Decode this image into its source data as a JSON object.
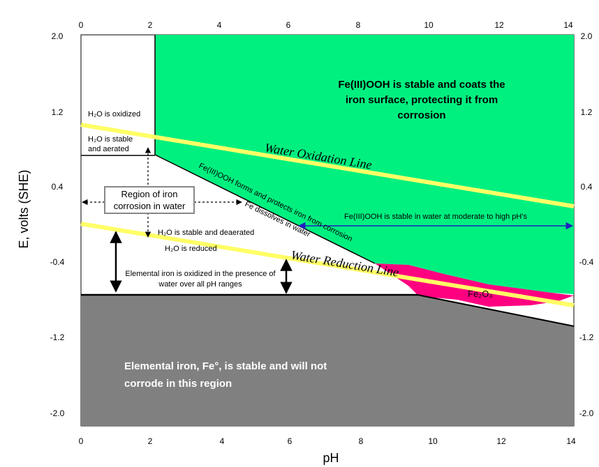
{
  "axes": {
    "x_title": "pH",
    "y_title": "E, volts (SHE)",
    "x_ticks": [
      "0",
      "2",
      "4",
      "6",
      "8",
      "10",
      "12",
      "14"
    ],
    "y_ticks": [
      "2.0",
      "1.2",
      "0.4",
      "-0.4",
      "-1.2",
      "-2.0"
    ]
  },
  "labels": {
    "feooh_stable_1": "Fe(III)OOH is stable and coats the",
    "feooh_stable_2": "iron surface, protecting it from",
    "feooh_stable_3": "corrosion",
    "water_oxidation_line": "Water Oxidation Line",
    "water_reduction_line": "Water Reduction Line",
    "h2o_oxidized": "H₂O is oxidized",
    "h2o_stable_aerated_1": "H₂O is stable",
    "h2o_stable_aerated_2": "and aerated",
    "region_box_1": "Region of iron",
    "region_box_2": "corrosion in water",
    "h2o_stable_deaerated": "H₂O is stable and deaerated",
    "h2o_reduced": "H₂O is reduced",
    "feooh_forms": "Fe(III)OOH forms and protects iron from corrosion",
    "fe_dissolves": "Fe dissolves in water",
    "feooh_moderate": "Fe(III)OOH is stable in water at moderate to high pH's",
    "elemental_oxidized_1": "Elemental iron is oxidized in the presence of",
    "elemental_oxidized_2": "water over all pH ranges",
    "fe2o3": "Fe₂O₃",
    "elemental_stable_1": "Elemental iron, Fe°, is stable and will not",
    "elemental_stable_2": "corrode in this region"
  },
  "colors": {
    "feooh_region": "#00f080",
    "fe2o3_region": "#ff0080",
    "iron_region": "#808080",
    "water_lines": "#ffff66",
    "blue_arrow": "#2020c0"
  }
}
